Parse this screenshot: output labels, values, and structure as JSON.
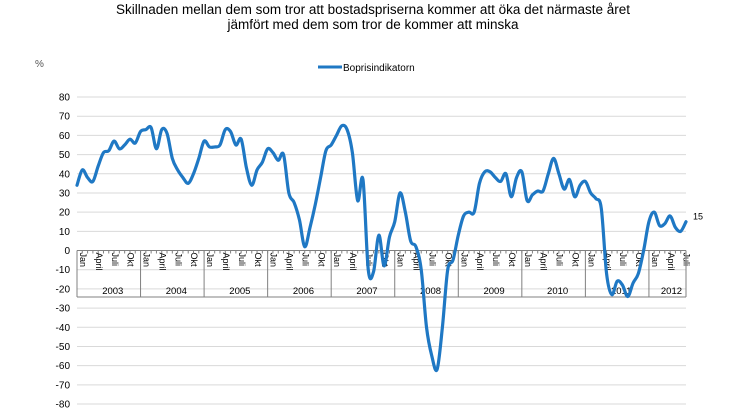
{
  "chart_data": {
    "type": "line",
    "title_lines": [
      "Skillnaden mellan dem som tror att bostadspriserna kommer att öka det närmaste året",
      "jämfört med dem som tror de kommer att minska"
    ],
    "ylabel": "%",
    "ylim": [
      -80,
      80
    ],
    "yticks": [
      "80",
      "70",
      "60",
      "50",
      "40",
      "30",
      "20",
      "10",
      "0",
      "-10",
      "-20",
      "-30",
      "-40",
      "-50",
      "-60",
      "-70",
      "-80"
    ],
    "grid": true,
    "legend": "top-center",
    "start": "2003-01",
    "month_tick_labels": [
      "Jan",
      "April",
      "Juli",
      "Okt"
    ],
    "years": [
      "2003",
      "2004",
      "2005",
      "2006",
      "2007",
      "2008",
      "2009",
      "2010",
      "2011",
      "2012"
    ],
    "end_label": "15",
    "series": [
      {
        "name": "Boprisindikatorn",
        "color": "#1f78c4",
        "values": [
          34,
          42,
          38,
          36,
          44,
          51,
          52,
          57,
          53,
          55,
          58,
          56,
          62,
          63,
          64,
          53,
          63,
          61,
          48,
          42,
          38,
          35,
          40,
          48,
          57,
          54,
          54,
          55,
          63,
          62,
          55,
          58,
          43,
          34,
          42,
          46,
          53,
          51,
          47,
          50,
          30,
          25,
          16,
          2,
          12,
          24,
          38,
          52,
          55,
          60,
          65,
          63,
          51,
          26,
          37,
          -10,
          -11,
          8,
          -8,
          7,
          15,
          30,
          20,
          5,
          2,
          -10,
          -40,
          -55,
          -62,
          -40,
          -10,
          -5,
          8,
          18,
          20,
          20,
          35,
          41,
          41,
          38,
          36,
          40,
          28,
          38,
          41,
          26,
          29,
          31,
          31,
          40,
          48,
          40,
          32,
          37,
          28,
          34,
          36,
          30,
          27,
          22,
          -12,
          -23,
          -16,
          -18,
          -24,
          -17,
          -12,
          0,
          15,
          20,
          13,
          14,
          18,
          12,
          10,
          15
        ]
      }
    ]
  }
}
